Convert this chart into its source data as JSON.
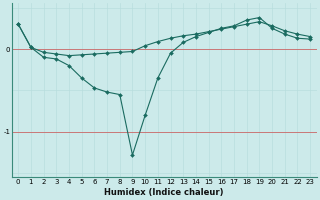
{
  "xlabel": "Humidex (Indice chaleur)",
  "background_color": "#cceaea",
  "grid_color_minor": "#b8dede",
  "grid_color_red": "#cc6666",
  "line_color": "#1a6b60",
  "xlim": [
    -0.5,
    23.5
  ],
  "ylim": [
    -1.55,
    0.55
  ],
  "yticks": [
    0,
    -1
  ],
  "xticks": [
    0,
    1,
    2,
    3,
    4,
    5,
    6,
    7,
    8,
    9,
    10,
    11,
    12,
    13,
    14,
    15,
    16,
    17,
    18,
    19,
    20,
    21,
    22,
    23
  ],
  "line1_x": [
    0,
    1,
    2,
    3,
    4,
    5,
    6,
    7,
    8,
    9,
    10,
    11,
    12,
    13,
    14,
    15,
    16,
    17,
    18,
    19,
    20,
    21,
    22,
    23
  ],
  "line1_y": [
    0.3,
    0.02,
    -0.04,
    -0.06,
    -0.08,
    -0.07,
    -0.06,
    -0.05,
    -0.04,
    -0.03,
    0.04,
    0.09,
    0.13,
    0.16,
    0.18,
    0.21,
    0.24,
    0.27,
    0.3,
    0.33,
    0.28,
    0.22,
    0.18,
    0.15
  ],
  "line2_x": [
    0,
    1,
    2,
    3,
    4,
    5,
    6,
    7,
    8,
    9,
    10,
    11,
    12,
    13,
    14,
    15,
    16,
    17,
    18,
    19,
    20,
    21,
    22,
    23
  ],
  "line2_y": [
    0.3,
    0.02,
    -0.1,
    -0.12,
    -0.2,
    -0.35,
    -0.47,
    -0.52,
    -0.55,
    -1.28,
    -0.8,
    -0.35,
    -0.05,
    0.08,
    0.15,
    0.2,
    0.25,
    0.28,
    0.35,
    0.38,
    0.25,
    0.18,
    0.13,
    0.12
  ],
  "figsize": [
    3.2,
    2.0
  ],
  "dpi": 100,
  "tick_fontsize": 5,
  "xlabel_fontsize": 6,
  "marker_size": 2.0,
  "linewidth": 0.8
}
